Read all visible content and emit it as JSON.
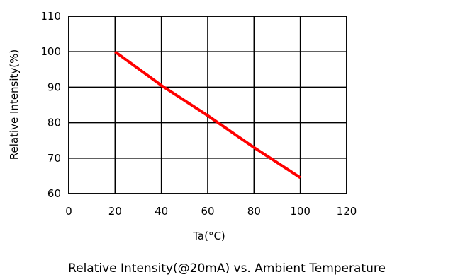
{
  "chart_data": {
    "type": "line",
    "xlabel": "Ta(°C)",
    "ylabel": "Relative Intensity(%)",
    "caption": "Relative Intensity(@20mA) vs. Ambient Temperature",
    "xlim": [
      0,
      120
    ],
    "ylim": [
      60,
      110
    ],
    "xticks": [
      0,
      20,
      40,
      60,
      80,
      100,
      120
    ],
    "yticks": [
      60,
      70,
      80,
      90,
      100,
      110
    ],
    "grid": true,
    "series": [
      {
        "x": [
          20,
          40,
          60,
          80,
          100
        ],
        "y": [
          100,
          90.5,
          82,
          73,
          64.5
        ],
        "color": "#ff0000"
      }
    ]
  }
}
